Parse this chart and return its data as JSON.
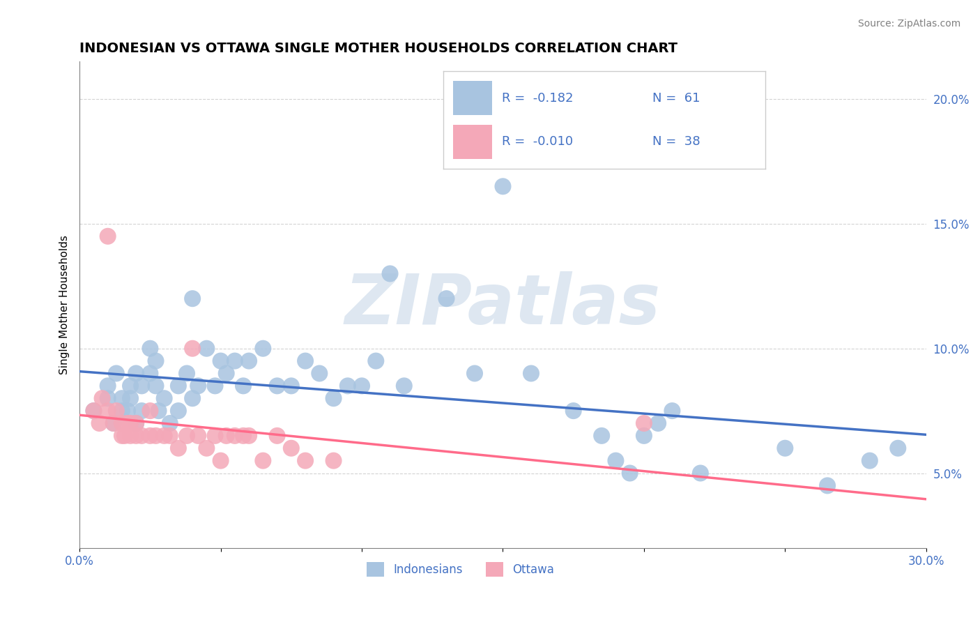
{
  "title": "INDONESIAN VS OTTAWA SINGLE MOTHER HOUSEHOLDS CORRELATION CHART",
  "source": "Source: ZipAtlas.com",
  "ylabel": "Single Mother Households",
  "legend_blue_label": "Indonesians",
  "legend_pink_label": "Ottawa",
  "legend_blue_r": "R =  -0.182",
  "legend_blue_n": "N =  61",
  "legend_pink_r": "R =  -0.010",
  "legend_pink_n": "N =  38",
  "blue_color": "#a8c4e0",
  "pink_color": "#f4a8b8",
  "blue_line_color": "#4472C4",
  "pink_line_color": "#FF6B8A",
  "watermark": "ZIPatlas",
  "watermark_color": "#c8d8e8",
  "xlim": [
    0.0,
    0.3
  ],
  "ylim": [
    0.02,
    0.215
  ],
  "yticks": [
    0.05,
    0.1,
    0.15,
    0.2
  ],
  "ytick_labels": [
    "5.0%",
    "10.0%",
    "15.0%",
    "20.0%"
  ],
  "xticks": [
    0.0,
    0.05,
    0.1,
    0.15,
    0.2,
    0.25,
    0.3
  ],
  "xtick_labels": [
    "0.0%",
    "",
    "",
    "",
    "",
    "",
    "30.0%"
  ],
  "blue_x": [
    0.005,
    0.01,
    0.01,
    0.012,
    0.013,
    0.015,
    0.015,
    0.017,
    0.018,
    0.018,
    0.02,
    0.02,
    0.022,
    0.022,
    0.025,
    0.025,
    0.027,
    0.027,
    0.028,
    0.03,
    0.032,
    0.035,
    0.035,
    0.038,
    0.04,
    0.04,
    0.042,
    0.045,
    0.048,
    0.05,
    0.052,
    0.055,
    0.058,
    0.06,
    0.065,
    0.07,
    0.075,
    0.08,
    0.085,
    0.09,
    0.095,
    0.1,
    0.105,
    0.11,
    0.115,
    0.13,
    0.14,
    0.15,
    0.16,
    0.175,
    0.185,
    0.19,
    0.195,
    0.2,
    0.205,
    0.21,
    0.22,
    0.25,
    0.265,
    0.28,
    0.29
  ],
  "blue_y": [
    0.075,
    0.08,
    0.085,
    0.07,
    0.09,
    0.075,
    0.08,
    0.075,
    0.08,
    0.085,
    0.07,
    0.09,
    0.075,
    0.085,
    0.09,
    0.1,
    0.095,
    0.085,
    0.075,
    0.08,
    0.07,
    0.085,
    0.075,
    0.09,
    0.12,
    0.08,
    0.085,
    0.1,
    0.085,
    0.095,
    0.09,
    0.095,
    0.085,
    0.095,
    0.1,
    0.085,
    0.085,
    0.095,
    0.09,
    0.08,
    0.085,
    0.085,
    0.095,
    0.13,
    0.085,
    0.12,
    0.09,
    0.165,
    0.09,
    0.075,
    0.065,
    0.055,
    0.05,
    0.065,
    0.07,
    0.075,
    0.05,
    0.06,
    0.045,
    0.055,
    0.06
  ],
  "pink_x": [
    0.005,
    0.007,
    0.008,
    0.01,
    0.01,
    0.012,
    0.013,
    0.015,
    0.015,
    0.016,
    0.017,
    0.018,
    0.018,
    0.02,
    0.02,
    0.022,
    0.025,
    0.025,
    0.027,
    0.03,
    0.032,
    0.035,
    0.038,
    0.04,
    0.042,
    0.045,
    0.048,
    0.05,
    0.052,
    0.055,
    0.058,
    0.06,
    0.065,
    0.07,
    0.075,
    0.08,
    0.09,
    0.2
  ],
  "pink_y": [
    0.075,
    0.07,
    0.08,
    0.145,
    0.075,
    0.07,
    0.075,
    0.065,
    0.07,
    0.065,
    0.07,
    0.065,
    0.07,
    0.065,
    0.07,
    0.065,
    0.075,
    0.065,
    0.065,
    0.065,
    0.065,
    0.06,
    0.065,
    0.1,
    0.065,
    0.06,
    0.065,
    0.055,
    0.065,
    0.065,
    0.065,
    0.065,
    0.055,
    0.065,
    0.06,
    0.055,
    0.055,
    0.07
  ]
}
